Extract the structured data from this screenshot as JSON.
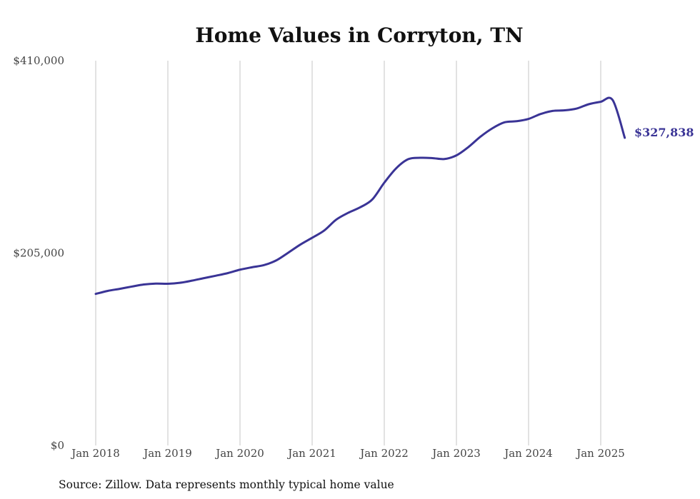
{
  "chart_data": {
    "type": "line",
    "title": "Home Values in Corryton, TN",
    "xlabel": "",
    "ylabel": "",
    "source": "Source: Zillow. Data represents monthly typical home value",
    "ylim": [
      0,
      410000
    ],
    "y_ticks": [
      {
        "value": 0,
        "label": "$0"
      },
      {
        "value": 205000,
        "label": "$205,000"
      },
      {
        "value": 410000,
        "label": "$410,000"
      }
    ],
    "x_ticks": [
      {
        "value": 2018.0,
        "label": "Jan 2018"
      },
      {
        "value": 2019.0,
        "label": "Jan 2019"
      },
      {
        "value": 2020.0,
        "label": "Jan 2020"
      },
      {
        "value": 2021.0,
        "label": "Jan 2021"
      },
      {
        "value": 2022.0,
        "label": "Jan 2022"
      },
      {
        "value": 2023.0,
        "label": "Jan 2023"
      },
      {
        "value": 2024.0,
        "label": "Jan 2024"
      },
      {
        "value": 2025.0,
        "label": "Jan 2025"
      }
    ],
    "xlim": [
      2017.4,
      2025.75
    ],
    "grid": "vertical",
    "line_color": "#3a3496",
    "end_label": "$327,838",
    "series": [
      {
        "x": [
          2018.0,
          2018.1667,
          2018.3333,
          2018.5,
          2018.6667,
          2018.8333,
          2019.0,
          2019.1667,
          2019.3333,
          2019.5,
          2019.6667,
          2019.8333,
          2020.0,
          2020.1667,
          2020.3333,
          2020.5,
          2020.6667,
          2020.8333,
          2021.0,
          2021.1667,
          2021.3333,
          2021.5,
          2021.6667,
          2021.8333,
          2022.0,
          2022.1667,
          2022.3333,
          2022.5,
          2022.6667,
          2022.8333,
          2023.0,
          2023.1667,
          2023.3333,
          2023.5,
          2023.6667,
          2023.8333,
          2024.0,
          2024.1667,
          2024.3333,
          2024.5,
          2024.6667,
          2024.8333,
          2025.0,
          2025.1667,
          2025.3333
        ],
        "values": [
          161500,
          164700,
          166900,
          169300,
          171500,
          172500,
          172300,
          173300,
          175600,
          178300,
          180900,
          183700,
          187300,
          189900,
          192200,
          197100,
          205300,
          213900,
          221300,
          229000,
          240600,
          247900,
          253800,
          262100,
          280000,
          295500,
          305100,
          306500,
          306200,
          305200,
          309100,
          318000,
          329000,
          338000,
          344300,
          345500,
          348000,
          353200,
          356500,
          357100,
          359000,
          363600,
          366200,
          367900,
          327838
        ]
      }
    ]
  }
}
